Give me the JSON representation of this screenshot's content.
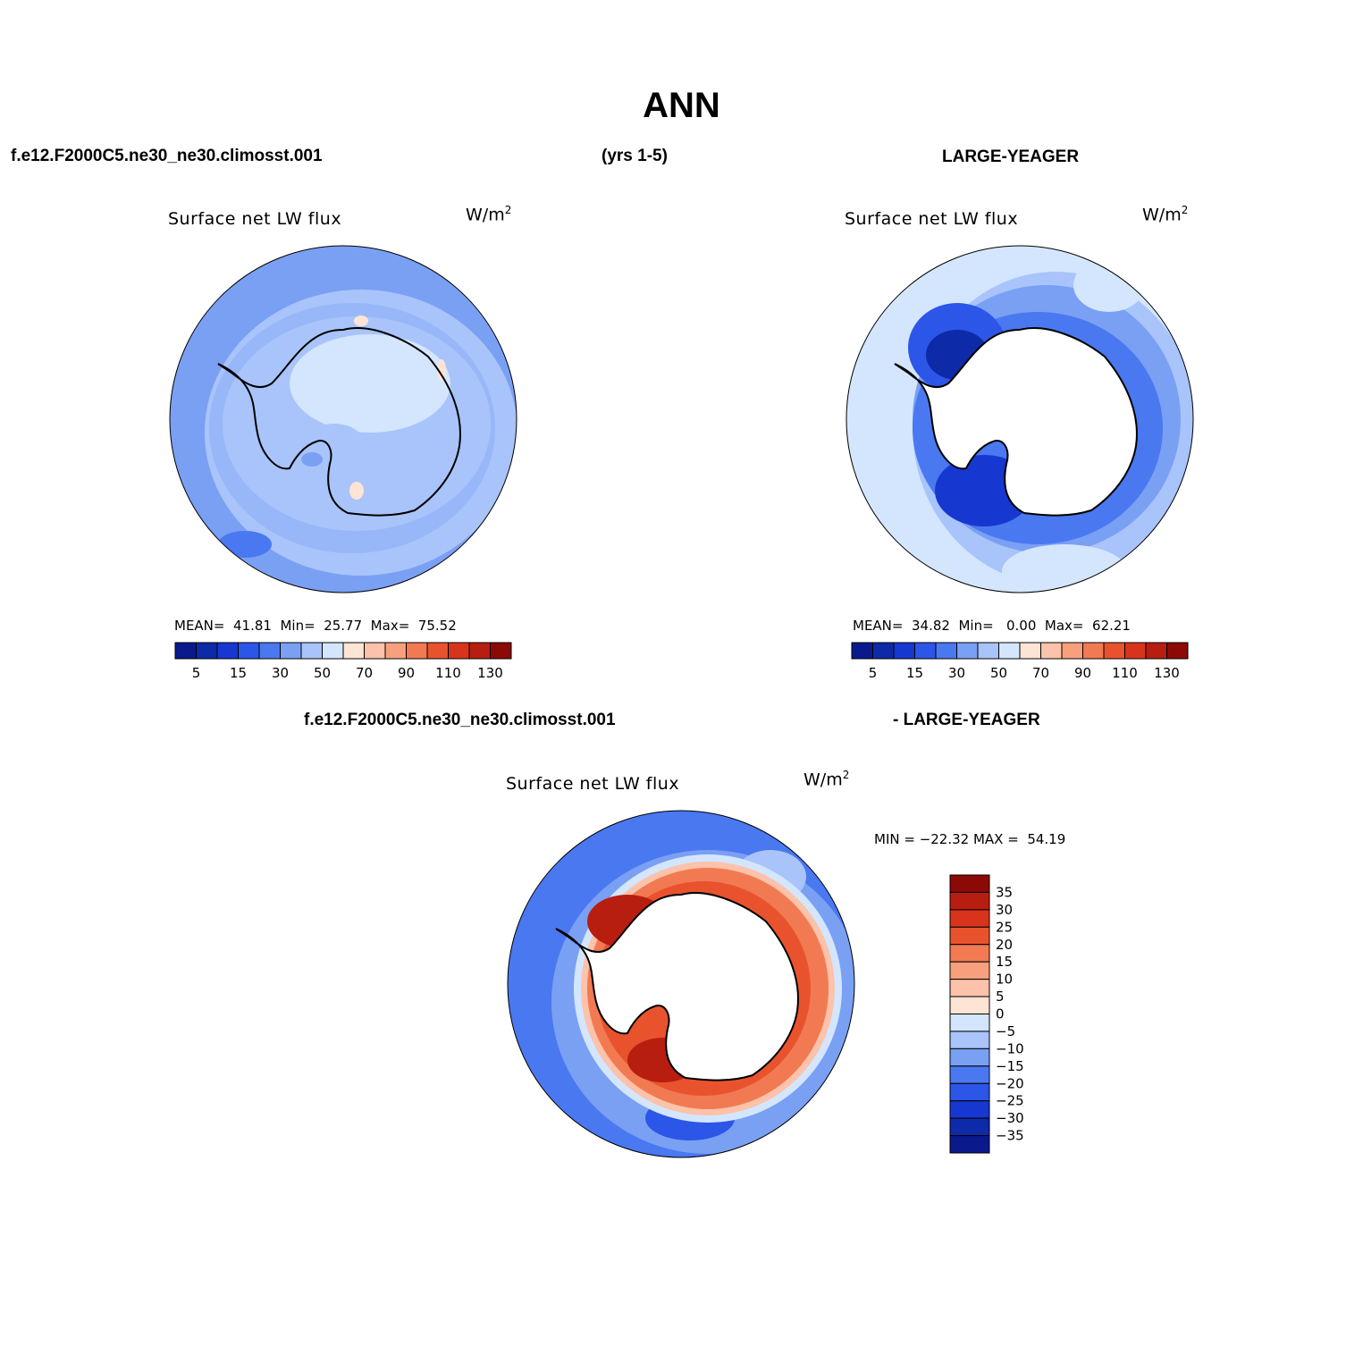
{
  "figure": {
    "title": "ANN",
    "case_name": "f.e12.F2000C5.ne30_ne30.climosst.001",
    "years": "(yrs 1-5)",
    "obs_name": "LARGE-YEAGER",
    "diff_case_name": "f.e12.F2000C5.ne30_ne30.climosst.001",
    "diff_obs_name": "- LARGE-YEAGER"
  },
  "panels": [
    {
      "variable_title": "Surface net LW flux",
      "units": "W/m",
      "units_sup": "2",
      "stats_text": "MEAN=  41.81  Min=  25.77  Max=  75.52"
    },
    {
      "variable_title": "Surface net LW flux",
      "units": "W/m",
      "units_sup": "2",
      "stats_text": "MEAN=  34.82  Min=   0.00  Max=  62.21"
    },
    {
      "variable_title": "Surface net LW flux",
      "units": "W/m",
      "units_sup": "2",
      "stats_text": "MIN = −22.32 MAX =  54.19"
    }
  ],
  "colorbars": {
    "main": {
      "colors": [
        "#0a1a8c",
        "#0d2aa8",
        "#1638d0",
        "#2c56e8",
        "#4a78f0",
        "#7aa0f4",
        "#a8c4fa",
        "#d4e6fe",
        "#fde4d4",
        "#fcc2aa",
        "#f8a07e",
        "#f27a52",
        "#e8532e",
        "#d8341c",
        "#b81e10",
        "#8c0a06"
      ],
      "labels": [
        "5",
        "15",
        "30",
        "50",
        "70",
        "90",
        "110",
        "130"
      ]
    },
    "diff": {
      "colors": [
        "#8c0a06",
        "#b81e10",
        "#d8341c",
        "#e8532e",
        "#f27a52",
        "#f8a07e",
        "#fcc2aa",
        "#fde4d4",
        "#d4e6fe",
        "#a8c4fa",
        "#7aa0f4",
        "#4a78f0",
        "#2c56e8",
        "#1638d0",
        "#0d2aa8",
        "#0a1a8c"
      ],
      "labels": [
        "35",
        "30",
        "25",
        "20",
        "15",
        "10",
        "5",
        "0",
        "−5",
        "−10",
        "−15",
        "−20",
        "−25",
        "−30",
        "−35"
      ]
    }
  },
  "colors": {
    "land": "#ffffff",
    "coast": "#000000"
  }
}
